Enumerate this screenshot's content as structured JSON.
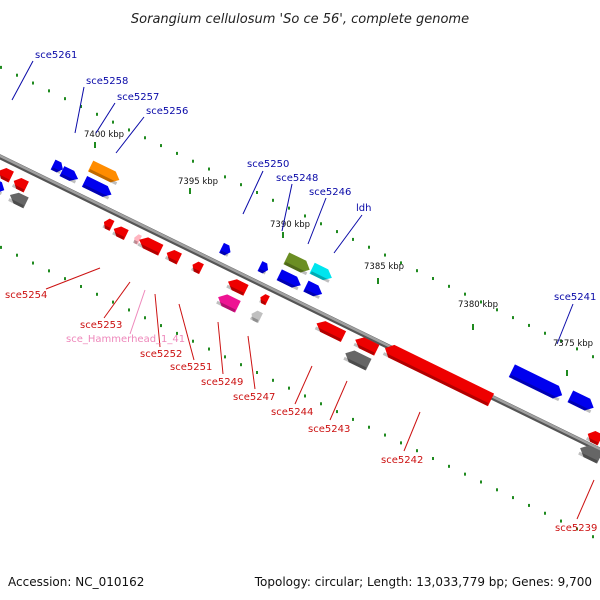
{
  "title": "Sorangium cellulosum 'So ce 56', complete genome",
  "footer": {
    "accession": "Accession: NC_010162",
    "summary": "Topology: circular; Length: 13,033,779 bp; Genes: 9,700"
  },
  "colors": {
    "backbone": "#8a8a8a",
    "forward_label": "#0a0aa8",
    "reverse_label": "#cc1111",
    "rna_label": "#ee88bb",
    "tick": "#1f8a1f"
  },
  "ticks": [
    {
      "label": "7400 kbp"
    },
    {
      "label": "7395 kbp"
    },
    {
      "label": "7390 kbp"
    },
    {
      "label": "7385 kbp"
    },
    {
      "label": "7380 kbp"
    },
    {
      "label": "7375 kbp"
    }
  ],
  "genes_forward": [
    {
      "label": "sce5261",
      "color": "#0000ee"
    },
    {
      "label": "sce5258",
      "color": "#0000ee"
    },
    {
      "label": "sce5257",
      "color": "#0000ee"
    },
    {
      "label": "sce5256",
      "color": "#ff8c00"
    },
    {
      "label": "sce5250",
      "color": "#0000ee"
    },
    {
      "label": "sce5248",
      "color": "#0000ee"
    },
    {
      "label": "sce5246",
      "color": "#6b8e23"
    },
    {
      "label": "ldh",
      "color": "#00e5ee"
    },
    {
      "label": "sce5241",
      "color": "#0000ee"
    }
  ],
  "genes_reverse": [
    {
      "label": "sce5254",
      "color": "#ee0000"
    },
    {
      "label": "sce5253",
      "color": "#ee0000"
    },
    {
      "label": "sce_Hammerhead_1_41",
      "color": "#ffb6c1"
    },
    {
      "label": "sce5252",
      "color": "#ee0000"
    },
    {
      "label": "sce5251",
      "color": "#ee0000"
    },
    {
      "label": "sce5249",
      "color": "#ee1493"
    },
    {
      "label": "sce5247",
      "color": "#c0c0c0"
    },
    {
      "label": "sce5244",
      "color": "#ee0000"
    },
    {
      "label": "sce5243",
      "color": "#666666"
    },
    {
      "label": "sce5242",
      "color": "#ee0000"
    },
    {
      "label": "sce5239",
      "color": "#ee0000"
    }
  ]
}
